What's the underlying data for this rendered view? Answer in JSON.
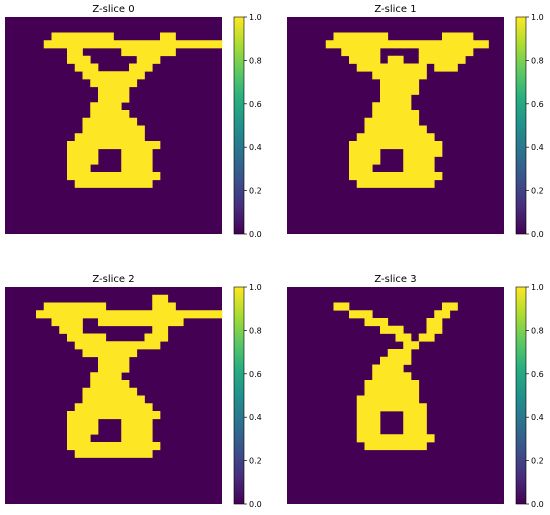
{
  "colormap": "viridis",
  "colors": {
    "low": "#440154",
    "high": "#fde725"
  },
  "chart_data": [
    {
      "type": "heatmap",
      "title": "Z-slice 0",
      "binary": true,
      "colorbar": {
        "range": [
          0.0,
          1.0
        ],
        "ticks": [
          "0.0",
          "0.2",
          "0.4",
          "0.6",
          "0.8",
          "1.0"
        ]
      },
      "grid": [
        "............................",
        "............................",
        "......########......##......",
        ".....########################",
        "........##.....#######......",
        "........###......###........",
        ".........###....###.........",
        "..........########..........",
        "...........######...........",
        "............####............",
        "............####............",
        "...........####.............",
        "...........#####............",
        "..........#######...........",
        "..........########..........",
        ".........#########..........",
        "........############........",
        "........####...####.........",
        "........####...####.........",
        "........###....####.........",
        "........############........",
        ".........##########.........",
        "............................",
        "............................",
        "............................",
        "............................",
        "............................",
        "............................"
      ]
    },
    {
      "type": "heatmap",
      "title": "Z-slice 1",
      "binary": true,
      "colorbar": {
        "range": [
          0.0,
          1.0
        ],
        "ticks": [
          "0.0",
          "0.2",
          "0.4",
          "0.6",
          "0.8",
          "1.0"
        ]
      },
      "grid": [
        "............................",
        "............................",
        "......#######.......####....",
        ".....#####################..",
        ".......#####.....#######....",
        "........####.##..######.....",
        ".........#########.###......",
        "...........#######..........",
        "............#####...........",
        "............#####...........",
        "............####............",
        "...........#####............",
        "...........######...........",
        "..........#######...........",
        "..........########..........",
        ".........##########.........",
        "........############........",
        "........####...#####........",
        "........####...####.........",
        "........###....####.........",
        "........############........",
        ".........##########.........",
        "............................",
        "............................",
        "............................",
        "............................",
        "............................",
        "............................"
      ]
    },
    {
      "type": "heatmap",
      "title": "Z-slice 2",
      "binary": true,
      "colorbar": {
        "range": [
          0.0,
          1.0
        ],
        "ticks": [
          "0.0",
          "0.2",
          "0.4",
          "0.6",
          "0.8",
          "1.0"
        ]
      },
      "grid": [
        "............................",
        "...................##.......",
        ".....########......###......",
        "....#########################",
        "......####..###########.....",
        ".......###.........##.......",
        "........#####.....###.......",
        ".........###########........",
        "..........#######...........",
        "............####............",
        "............####............",
        "...........####.............",
        "...........#####............",
        "..........#######...........",
        "..........########..........",
        ".........##########.........",
        "........############........",
        "........####...####.........",
        "........####...####.........",
        "........###....####.........",
        "........############........",
        ".........##########.........",
        "............................",
        "............................",
        "............................",
        "............................",
        "............................",
        "............................"
      ]
    },
    {
      "type": "heatmap",
      "title": "Z-slice 3",
      "binary": true,
      "colorbar": {
        "range": [
          0.0,
          1.0
        ],
        "ticks": [
          "0.0",
          "0.2",
          "0.4",
          "0.6",
          "0.8",
          "1.0"
        ]
      },
      "grid": [
        "............................",
        "............................",
        "......##............##......",
        "........###........##.......",
        "..........###.....##........",
        "............###...##........",
        "..............##.##.........",
        "...............##...........",
        ".............###............",
        "............####............",
        "...........####.............",
        "...........#####............",
        "..........#######...........",
        "..........#######...........",
        ".........########...........",
        ".........#########..........",
        ".........###...###..........",
        ".........###...###..........",
        ".........###...###..........",
        ".........##########.........",
        "..........########..........",
        "............................",
        "............................",
        "............................",
        "............................",
        "............................",
        "............................",
        "............................"
      ]
    }
  ]
}
